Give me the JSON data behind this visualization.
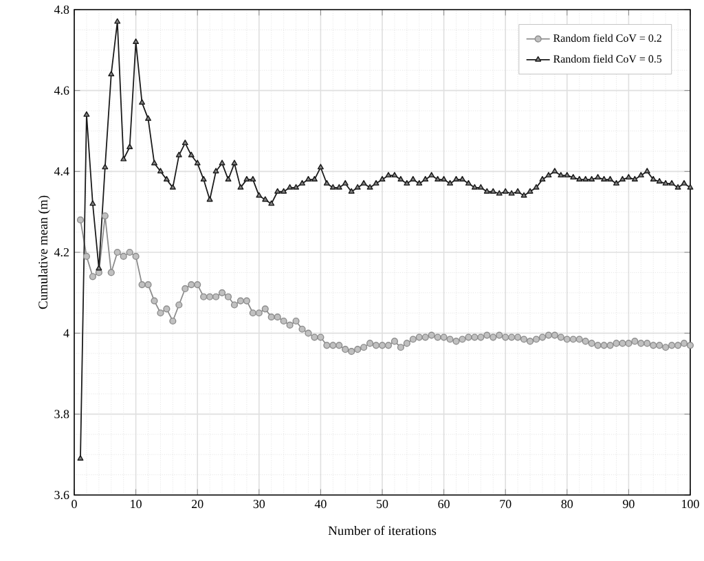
{
  "chart_data": {
    "type": "line",
    "xlabel": "Number of iterations",
    "ylabel": "Cumulative mean (m)",
    "x": [
      1,
      2,
      3,
      4,
      5,
      6,
      7,
      8,
      9,
      10,
      11,
      12,
      13,
      14,
      15,
      16,
      17,
      18,
      19,
      20,
      21,
      22,
      23,
      24,
      25,
      26,
      27,
      28,
      29,
      30,
      31,
      32,
      33,
      34,
      35,
      36,
      37,
      38,
      39,
      40,
      41,
      42,
      43,
      44,
      45,
      46,
      47,
      48,
      49,
      50,
      51,
      52,
      53,
      54,
      55,
      56,
      57,
      58,
      59,
      60,
      61,
      62,
      63,
      64,
      65,
      66,
      67,
      68,
      69,
      70,
      71,
      72,
      73,
      74,
      75,
      76,
      77,
      78,
      79,
      80,
      81,
      82,
      83,
      84,
      85,
      86,
      87,
      88,
      89,
      90,
      91,
      92,
      93,
      94,
      95,
      96,
      97,
      98,
      99,
      100
    ],
    "series": [
      {
        "name": "Random field CoV = 0.2",
        "color": "#8c8c8c",
        "marker": "circle",
        "values": [
          4.28,
          4.19,
          4.14,
          4.15,
          4.29,
          4.15,
          4.2,
          4.19,
          4.2,
          4.19,
          4.12,
          4.12,
          4.08,
          4.05,
          4.06,
          4.03,
          4.07,
          4.11,
          4.12,
          4.12,
          4.09,
          4.09,
          4.09,
          4.1,
          4.09,
          4.07,
          4.08,
          4.08,
          4.05,
          4.05,
          4.06,
          4.04,
          4.04,
          4.03,
          4.02,
          4.03,
          4.01,
          4.0,
          3.99,
          3.99,
          3.97,
          3.97,
          3.97,
          3.96,
          3.955,
          3.96,
          3.965,
          3.975,
          3.97,
          3.97,
          3.97,
          3.98,
          3.965,
          3.975,
          3.985,
          3.99,
          3.99,
          3.995,
          3.99,
          3.99,
          3.985,
          3.98,
          3.985,
          3.99,
          3.99,
          3.99,
          3.995,
          3.99,
          3.995,
          3.99,
          3.99,
          3.99,
          3.985,
          3.98,
          3.985,
          3.99,
          3.995,
          3.995,
          3.99,
          3.985,
          3.985,
          3.985,
          3.98,
          3.975,
          3.97,
          3.97,
          3.97,
          3.975,
          3.975,
          3.975,
          3.98,
          3.975,
          3.975,
          3.97,
          3.97,
          3.965,
          3.97,
          3.97,
          3.975,
          3.97
        ]
      },
      {
        "name": "Random field CoV = 0.5",
        "color": "#1a1a1a",
        "marker": "triangle",
        "values": [
          3.69,
          4.54,
          4.32,
          4.16,
          4.41,
          4.64,
          4.77,
          4.43,
          4.46,
          4.72,
          4.57,
          4.53,
          4.42,
          4.4,
          4.38,
          4.36,
          4.44,
          4.47,
          4.44,
          4.42,
          4.38,
          4.33,
          4.4,
          4.42,
          4.38,
          4.42,
          4.36,
          4.38,
          4.38,
          4.34,
          4.33,
          4.32,
          4.35,
          4.35,
          4.36,
          4.36,
          4.37,
          4.38,
          4.38,
          4.41,
          4.37,
          4.36,
          4.36,
          4.37,
          4.35,
          4.36,
          4.37,
          4.36,
          4.37,
          4.38,
          4.39,
          4.39,
          4.38,
          4.37,
          4.38,
          4.37,
          4.38,
          4.39,
          4.38,
          4.38,
          4.37,
          4.38,
          4.38,
          4.37,
          4.36,
          4.36,
          4.35,
          4.35,
          4.345,
          4.35,
          4.345,
          4.35,
          4.34,
          4.35,
          4.36,
          4.38,
          4.39,
          4.4,
          4.39,
          4.39,
          4.385,
          4.38,
          4.38,
          4.38,
          4.385,
          4.38,
          4.38,
          4.37,
          4.38,
          4.385,
          4.38,
          4.39,
          4.4,
          4.38,
          4.375,
          4.37,
          4.37,
          4.36,
          4.37,
          4.36
        ]
      }
    ],
    "xlim": [
      0,
      100
    ],
    "ylim": [
      3.6,
      4.8
    ],
    "xticks": [
      0,
      10,
      20,
      30,
      40,
      50,
      60,
      70,
      80,
      90,
      100
    ],
    "yticks": [
      3.6,
      3.8,
      {
        "value": 4,
        "label": "4"
      },
      4.2,
      4.4,
      4.6,
      4.8
    ],
    "grid": true,
    "legend": "top right",
    "line_style": "solid"
  }
}
